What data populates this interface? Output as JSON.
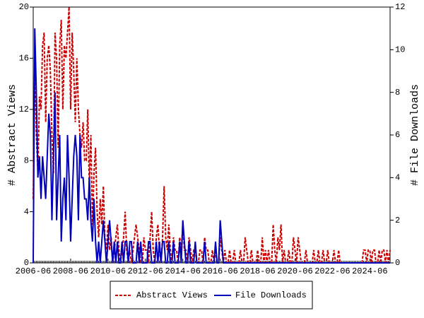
{
  "chart_data": {
    "type": "line",
    "categories": [
      "2006-06",
      null,
      null,
      null,
      null,
      null,
      null,
      null,
      null,
      null,
      null,
      null,
      null,
      null,
      null,
      null,
      null,
      null,
      null,
      null,
      null,
      null,
      null,
      null,
      "2008-06",
      null,
      null,
      null,
      null,
      null,
      null,
      null,
      null,
      null,
      null,
      null,
      null,
      null,
      null,
      null,
      null,
      null,
      null,
      null,
      null,
      null,
      null,
      null,
      "2010-06",
      null,
      null,
      null,
      null,
      null,
      null,
      null,
      null,
      null,
      null,
      null,
      null,
      null,
      null,
      null,
      null,
      null,
      null,
      null,
      null,
      null,
      null,
      null,
      "2012-06",
      null,
      null,
      null,
      null,
      null,
      null,
      null,
      null,
      null,
      null,
      null,
      null,
      null,
      null,
      null,
      null,
      null,
      null,
      null,
      null,
      null,
      null,
      null,
      "2014-06",
      null,
      null,
      null,
      null,
      null,
      null,
      null,
      null,
      null,
      null,
      null,
      null,
      null,
      null,
      null,
      null,
      null,
      null,
      null,
      null,
      null,
      null,
      null,
      "2016-06",
      null,
      null,
      null,
      null,
      null,
      null,
      null,
      null,
      null,
      null,
      null,
      null,
      null,
      null,
      null,
      null,
      null,
      null,
      null,
      null,
      null,
      null,
      null,
      "2018-06",
      null,
      null,
      null,
      null,
      null,
      null,
      null,
      null,
      null,
      null,
      null,
      null,
      null,
      null,
      null,
      null,
      null,
      null,
      null,
      null,
      null,
      null,
      null,
      "2020-06",
      null,
      null,
      null,
      null,
      null,
      null,
      null,
      null,
      null,
      null,
      null,
      null,
      null,
      null,
      null,
      null,
      null,
      null,
      null,
      null,
      null,
      null,
      null,
      "2022-06",
      null,
      null,
      null,
      null,
      null,
      null,
      null,
      null,
      null,
      null,
      null,
      null,
      null,
      null,
      null,
      null,
      null,
      null,
      null,
      null,
      null,
      null,
      null,
      "2024-06",
      null,
      null,
      null,
      null,
      null,
      null,
      null,
      null,
      null,
      null,
      null,
      null,
      null
    ],
    "series": [
      {
        "name": "Abstract Views",
        "color": "#cc0000",
        "dashed": true,
        "axis": "y",
        "values": [
          5,
          16,
          10,
          7,
          13,
          12,
          17,
          18,
          11,
          16,
          17,
          15,
          10,
          7,
          18,
          16,
          9,
          17,
          19,
          12,
          17,
          16,
          18,
          20,
          12,
          18,
          15,
          11,
          16,
          12,
          10,
          9,
          11,
          8,
          8,
          12,
          6,
          10,
          3,
          7,
          9,
          4,
          2,
          5,
          3,
          6,
          2,
          1,
          3,
          1,
          2,
          0,
          1,
          2,
          3,
          1,
          0,
          1,
          2,
          4,
          1,
          0,
          1,
          0,
          1,
          2,
          3,
          2,
          1,
          0,
          0,
          2,
          1,
          1,
          0,
          2,
          4,
          1,
          0,
          2,
          3,
          1,
          0,
          2,
          6,
          2,
          1,
          3,
          1,
          0,
          2,
          1,
          1,
          0,
          2,
          1,
          3,
          1,
          1,
          0,
          2,
          1,
          0,
          1,
          1,
          0,
          0,
          1,
          1,
          0,
          2,
          1,
          1,
          0,
          0,
          1,
          0,
          1,
          0,
          0,
          2,
          1,
          0,
          1,
          0,
          0,
          1,
          0,
          0,
          1,
          0,
          0,
          0,
          1,
          0,
          0,
          2,
          1,
          0,
          0,
          1,
          0,
          0,
          0,
          1,
          0,
          0,
          2,
          0,
          1,
          0,
          1,
          0,
          0,
          3,
          1,
          0,
          2,
          1,
          3,
          0,
          1,
          0,
          0,
          1,
          0,
          0,
          2,
          1,
          0,
          2,
          1,
          0,
          0,
          0,
          1,
          0,
          0,
          0,
          0,
          1,
          0,
          0,
          1,
          0,
          0,
          1,
          0,
          0,
          1,
          0,
          0,
          0,
          1,
          0,
          0,
          1,
          0,
          0,
          0,
          0,
          0,
          0,
          0,
          0,
          0,
          0,
          0,
          0,
          0,
          0,
          0,
          1,
          1,
          0,
          1,
          1,
          0,
          1,
          1,
          0,
          0,
          1,
          0,
          1,
          1,
          0,
          1,
          0,
          1
        ]
      },
      {
        "name": "File Downloads",
        "color": "#0000bb",
        "dashed": false,
        "axis": "y2",
        "values": [
          0,
          11,
          8,
          4,
          5,
          3,
          5,
          4,
          3,
          5,
          7,
          6,
          2,
          5,
          8,
          2,
          4,
          6,
          1,
          3,
          4,
          2,
          6,
          4,
          1,
          3,
          5,
          6,
          5,
          2,
          6,
          4,
          4,
          3,
          3,
          2,
          4,
          2,
          1,
          3,
          1,
          0,
          1,
          0,
          1,
          2,
          1,
          0,
          1,
          2,
          1,
          0,
          1,
          0,
          1,
          0,
          0,
          1,
          0,
          1,
          1,
          0,
          1,
          1,
          0,
          0,
          0,
          1,
          0,
          1,
          0,
          0,
          0,
          0,
          1,
          1,
          0,
          0,
          0,
          1,
          0,
          1,
          0,
          1,
          1,
          0,
          0,
          1,
          0,
          0,
          1,
          0,
          0,
          0,
          1,
          0,
          2,
          1,
          0,
          0,
          1,
          0,
          0,
          0,
          1,
          0,
          0,
          0,
          0,
          0,
          1,
          0,
          0,
          0,
          0,
          0,
          0,
          1,
          0,
          0,
          2,
          1,
          0,
          0,
          0,
          0,
          0,
          0,
          0,
          0,
          0,
          0,
          0,
          0,
          0,
          0,
          0,
          0,
          0,
          0,
          0,
          0,
          0,
          0,
          0,
          0,
          0,
          0,
          0,
          0,
          0,
          0,
          0,
          0,
          0,
          0,
          0,
          0,
          0,
          0,
          0,
          0,
          0,
          0,
          0,
          0,
          0,
          0,
          0,
          0,
          0,
          0,
          0,
          0,
          0,
          0,
          0,
          0,
          0,
          0,
          0,
          0,
          0,
          0,
          0,
          0,
          0,
          0,
          0,
          0,
          0,
          0,
          0,
          0,
          0,
          0,
          0,
          0,
          0,
          0,
          0,
          0,
          0,
          0,
          0,
          0,
          0,
          0,
          0,
          0,
          0,
          0,
          0,
          0,
          0,
          0,
          0,
          0,
          0,
          0,
          0,
          0,
          0,
          0,
          0,
          0,
          0,
          0,
          0,
          0
        ]
      }
    ],
    "ylabel": "# Abstract Views",
    "y2label": "# File Downloads",
    "ylim": [
      0,
      20
    ],
    "yticks": [
      0,
      4,
      8,
      12,
      16,
      20
    ],
    "y2lim": [
      0,
      12
    ],
    "y2ticks": [
      0,
      2,
      4,
      6,
      8,
      10,
      12
    ],
    "grid": false,
    "legend": "bottom"
  }
}
